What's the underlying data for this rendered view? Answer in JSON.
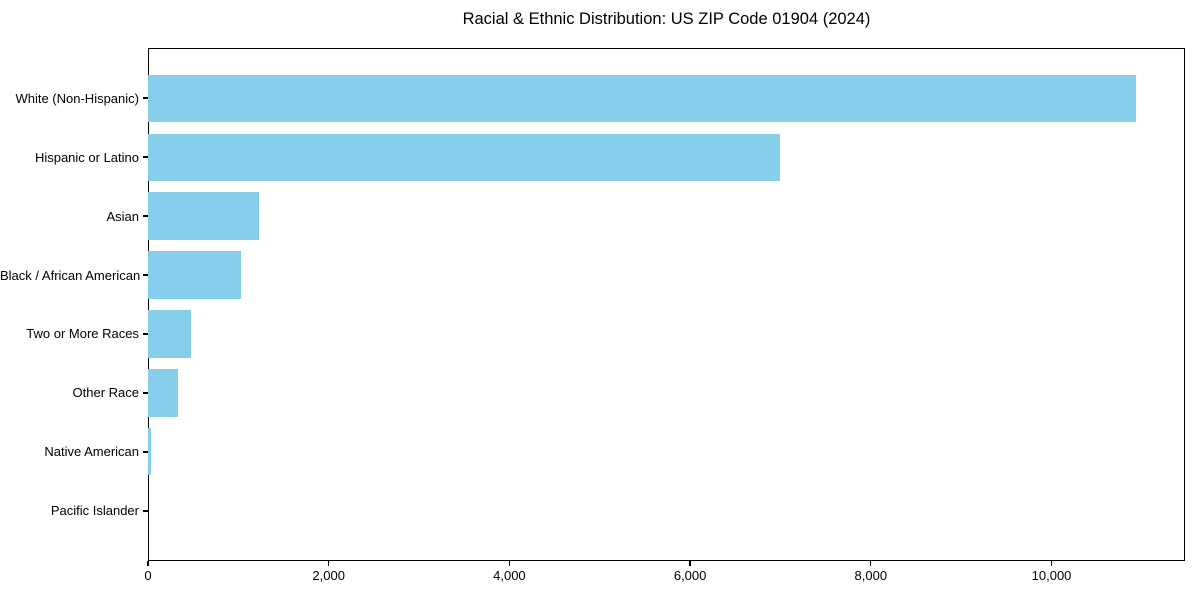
{
  "chart_data": {
    "type": "bar",
    "orientation": "horizontal",
    "title": "Racial & Ethnic Distribution: US ZIP Code 01904 (2024)",
    "categories": [
      "White (Non-Hispanic)",
      "Hispanic or Latino",
      "Asian",
      "Black / African American",
      "Two or More Races",
      "Other Race",
      "Native American",
      "Pacific Islander"
    ],
    "values": [
      10930,
      7000,
      1230,
      1030,
      475,
      330,
      30,
      0
    ],
    "title_color": "#000000",
    "xlabel": "",
    "ylabel": "",
    "xlim": [
      0,
      11477
    ],
    "xticks": [
      0,
      2000,
      4000,
      6000,
      8000,
      10000
    ],
    "xtick_labels": [
      "0",
      "2,000",
      "4,000",
      "6,000",
      "8,000",
      "10,000"
    ],
    "bar_color": "#87CEEB",
    "background_color": "#FFFFFF",
    "axis_color": "#000000",
    "grid": false,
    "legend_position": "none"
  }
}
